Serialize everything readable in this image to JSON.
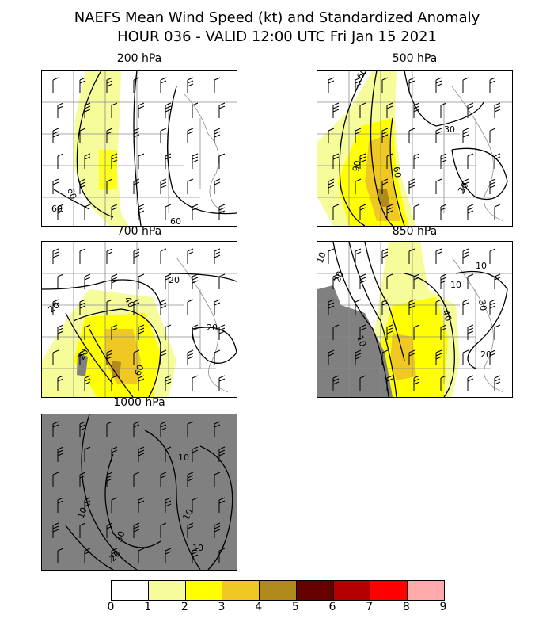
{
  "title_line1": "NAEFS Mean Wind Speed (kt) and Standardized Anomaly",
  "title_line2": "HOUR 036 - VALID 12:00 UTC Fri Jan 15 2021",
  "panels": [
    {
      "label": "200 hPa",
      "contour_labels": [
        "60",
        "60",
        "60"
      ]
    },
    {
      "label": "500 hPa",
      "contour_labels": [
        "60",
        "90",
        "60",
        "30",
        "30"
      ]
    },
    {
      "label": "700 hPa",
      "contour_labels": [
        "20",
        "40",
        "20",
        "20",
        "60",
        "20"
      ]
    },
    {
      "label": "850 hPa",
      "contour_labels": [
        "10",
        "20",
        "10",
        "10",
        "30",
        "40",
        "20",
        "10"
      ]
    },
    {
      "label": "1000 hPa",
      "contour_labels": [
        "10",
        "10",
        "10",
        "30",
        "20",
        "10"
      ]
    }
  ],
  "colorbar": {
    "ticks": [
      "0",
      "1",
      "2",
      "3",
      "4",
      "5",
      "6",
      "7",
      "8",
      "9"
    ],
    "colors": [
      "#ffffff",
      "#f6fc9a",
      "#ffff00",
      "#f0c824",
      "#b08a1c",
      "#640000",
      "#b40000",
      "#ff0000",
      "#ffaaaa"
    ]
  },
  "colors": {
    "mask": "#808080",
    "contour": "#000000",
    "border": "#8c8c8c"
  }
}
